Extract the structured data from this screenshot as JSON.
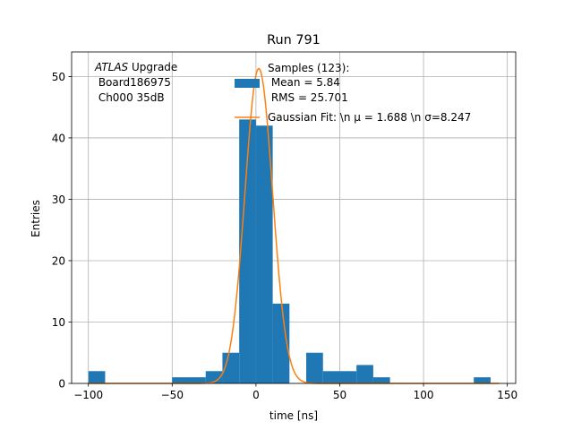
{
  "colors": {
    "histogram": "#1f77b4",
    "fit": "#ff7f0e",
    "grid": "#b0b0b0",
    "axis": "#000000"
  },
  "chart_data": {
    "type": "bar",
    "title": "Run 791",
    "xlabel": "time [ns]",
    "ylabel": "Entries",
    "xlim": [
      -110,
      155
    ],
    "ylim": [
      0,
      54
    ],
    "x_ticks": [
      -100,
      -50,
      0,
      50,
      100,
      150
    ],
    "x_tick_labels": [
      "−100",
      "−50",
      "0",
      "50",
      "100",
      "150"
    ],
    "y_ticks": [
      0,
      10,
      20,
      30,
      40,
      50
    ],
    "y_tick_labels": [
      "0",
      "10",
      "20",
      "30",
      "40",
      "50"
    ],
    "grid": true,
    "annotation": {
      "italic": "ATLAS",
      "rest": " Upgrade",
      "line2": " Board186975",
      "line3": " Ch000 35dB"
    },
    "legend": {
      "position": "top-right",
      "histogram_lines": [
        "Samples (123):",
        " Mean = 5.84",
        " RMS = 25.701"
      ],
      "fit_text": "Gaussian Fit: \\n μ = 1.688 \\n σ=8.247"
    },
    "histogram": {
      "bin_width": 10,
      "bin_edges_start": -100,
      "counts": [
        2,
        0,
        0,
        0,
        0,
        1,
        1,
        2,
        5,
        43,
        42,
        13,
        0,
        5,
        2,
        2,
        3,
        1,
        0,
        0,
        0,
        0,
        0,
        1
      ]
    },
    "gaussian_fit": {
      "amplitude": 51.3,
      "mu": 1.688,
      "sigma": 8.247,
      "x_range": [
        -100,
        145
      ]
    }
  }
}
